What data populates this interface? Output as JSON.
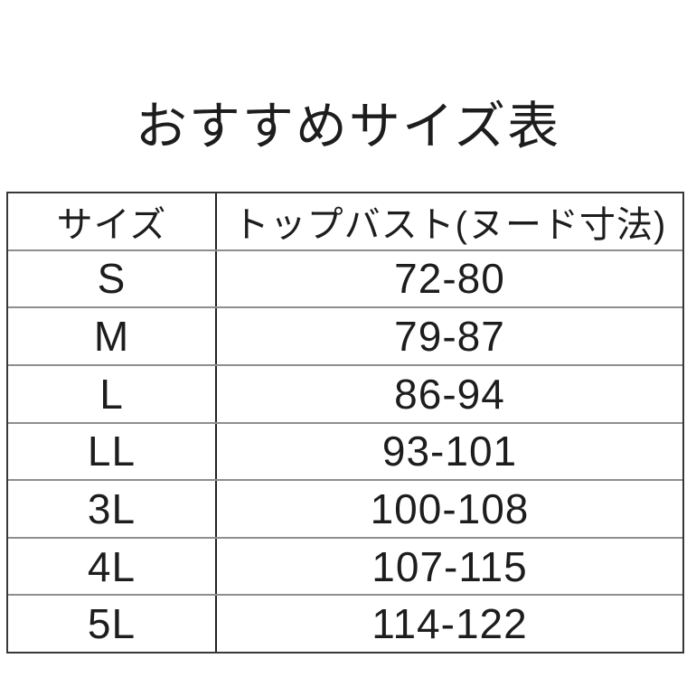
{
  "title": "おすすめサイズ表",
  "chart_data": {
    "type": "table",
    "title": "おすすめサイズ表",
    "columns": [
      "サイズ",
      "トップバスト(ヌード寸法)"
    ],
    "rows": [
      [
        "S",
        "72-80"
      ],
      [
        "M",
        "79-87"
      ],
      [
        "L",
        "86-94"
      ],
      [
        "LL",
        "93-101"
      ],
      [
        "3L",
        "100-108"
      ],
      [
        "4L",
        "107-115"
      ],
      [
        "5L",
        "114-122"
      ]
    ]
  },
  "colors": {
    "background": "#ffffff",
    "text": "#1d1d1d",
    "table_border": "#383838",
    "column_divider": "#222222",
    "row_divider": "#8e8e8e"
  }
}
